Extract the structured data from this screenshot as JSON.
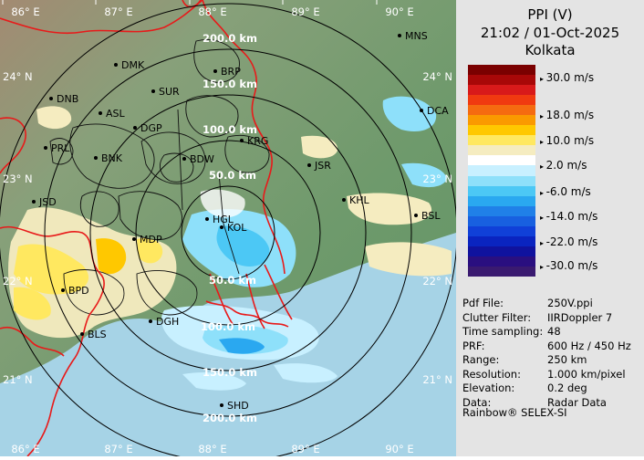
{
  "panel": {
    "title": "PPI (V)",
    "datetime": "21:02 / 01-Oct-2025",
    "station": "Kolkata",
    "legend": [
      {
        "label": "30.0 m/s",
        "color": "#8b0a0a"
      },
      {
        "label": "18.0 m/s",
        "color": "#e8501a"
      },
      {
        "label": "10.0 m/s",
        "color": "#f5d000"
      },
      {
        "label": "2.0 m/s",
        "color": "#faf2c8"
      },
      {
        "label": "-6.0 m/s",
        "color": "#6fd3f5"
      },
      {
        "label": "-14.0 m/s",
        "color": "#1f7ae6"
      },
      {
        "label": "-22.0 m/s",
        "color": "#1a2ed9"
      },
      {
        "label": "-30.0 m/s",
        "color": "#2e1f8f"
      }
    ],
    "legend_colors": [
      "#7a0000",
      "#a80808",
      "#d81a1a",
      "#f03a10",
      "#f56b10",
      "#fa9a00",
      "#ffc800",
      "#ffe860",
      "#f5ecc0",
      "#ffffff",
      "#c8f0ff",
      "#8ee0fa",
      "#4cc8f5",
      "#2aa8f0",
      "#2080e8",
      "#1860e0",
      "#1040d8",
      "#0a24c0",
      "#10129e",
      "#2a0f80",
      "#3a1a70"
    ],
    "info": [
      {
        "key": "Pdf File:",
        "value": "250V.ppi"
      },
      {
        "key": "Clutter Filter:",
        "value": "IIRDoppler 7"
      },
      {
        "key": "Time sampling:",
        "value": "48"
      },
      {
        "key": "PRF:",
        "value": "600 Hz / 450 Hz"
      },
      {
        "key": "Range:",
        "value": "250 km"
      },
      {
        "key": "Resolution:",
        "value": "1.000 km/pixel"
      },
      {
        "key": "Elevation:",
        "value": "0.2 deg"
      },
      {
        "key": "Data:",
        "value": "Radar Data"
      }
    ],
    "footer": "Rainbow® SELEX-SI"
  },
  "map": {
    "lon_labels": [
      "86° E",
      "87° E",
      "88° E",
      "89° E",
      "90° E"
    ],
    "lat_labels": [
      "24° N",
      "23° N",
      "22° N",
      "21° N"
    ],
    "range_labels": [
      "50.0 km",
      "100.0 km",
      "150.0 km",
      "200.0 km"
    ],
    "cities": [
      {
        "name": "MNS"
      },
      {
        "name": "DMK"
      },
      {
        "name": "BRP"
      },
      {
        "name": "DNB"
      },
      {
        "name": "SUR"
      },
      {
        "name": "ASL"
      },
      {
        "name": "DGP"
      },
      {
        "name": "DCA"
      },
      {
        "name": "PRL"
      },
      {
        "name": "BNK"
      },
      {
        "name": "KRG"
      },
      {
        "name": "BDW"
      },
      {
        "name": "JSR"
      },
      {
        "name": "KHL"
      },
      {
        "name": "JSD"
      },
      {
        "name": "HGL"
      },
      {
        "name": "KOL"
      },
      {
        "name": "BSL"
      },
      {
        "name": "MDP"
      },
      {
        "name": "BPD"
      },
      {
        "name": "DGH"
      },
      {
        "name": "BLS"
      },
      {
        "name": "SHD"
      }
    ],
    "colors": {
      "land": "#7d9f76",
      "sea": "#a6d3e6",
      "border": "#e81a1a",
      "district": "#101010"
    }
  }
}
